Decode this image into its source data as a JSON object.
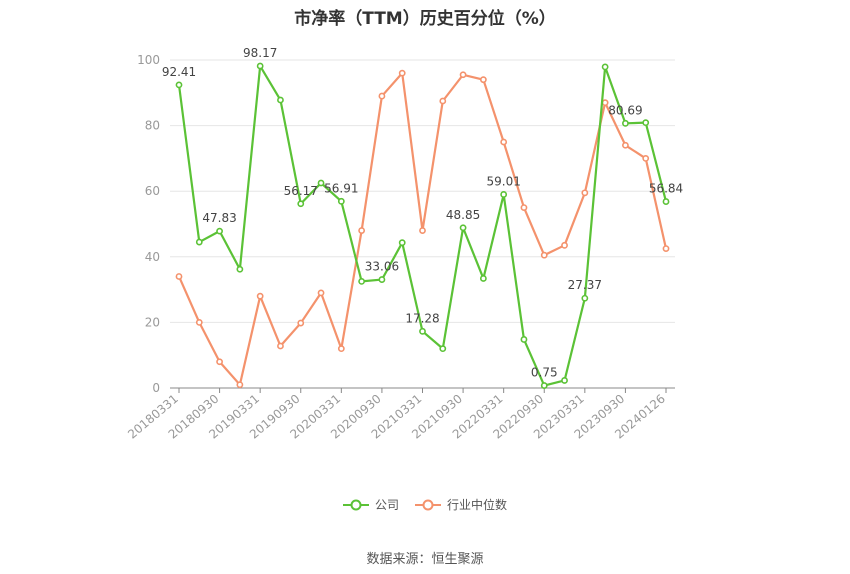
{
  "chart_data": {
    "type": "line",
    "title": "市净率（TTM）历史百分位（%）",
    "xlabel": "",
    "ylabel": "",
    "ylim": [
      0,
      100
    ],
    "yticks": [
      0,
      20,
      40,
      60,
      80,
      100
    ],
    "grid": true,
    "legend_position": "bottom",
    "x": [
      "20180331",
      "20180630",
      "20180930",
      "20181231",
      "20190331",
      "20190630",
      "20190930",
      "20191231",
      "20200331",
      "20200630",
      "20200930",
      "20201231",
      "20210331",
      "20210630",
      "20210930",
      "20211231",
      "20220331",
      "20220630",
      "20220930",
      "20221231",
      "20230331",
      "20230630",
      "20230930",
      "20231231",
      "20240126"
    ],
    "tick_labels": [
      "20180331",
      "20180930",
      "20190331",
      "20190930",
      "20200331",
      "20200930",
      "20210331",
      "20210930",
      "20220331",
      "20220930",
      "20230331",
      "20230930",
      "20240126"
    ],
    "tick_indices": [
      0,
      2,
      4,
      6,
      8,
      10,
      12,
      14,
      16,
      18,
      20,
      22,
      24
    ],
    "series": [
      {
        "name": "公司",
        "color": "#5bc236",
        "values": [
          92.41,
          44.5,
          47.83,
          36.2,
          98.17,
          87.8,
          56.17,
          62.5,
          56.91,
          32.5,
          33.06,
          44.3,
          17.28,
          12.0,
          48.85,
          33.4,
          59.01,
          14.8,
          0.75,
          2.3,
          27.37,
          97.9,
          80.69,
          80.9,
          56.84
        ],
        "labels": [
          "92.41",
          null,
          "47.83",
          null,
          "98.17",
          null,
          "56.17",
          null,
          "56.91",
          null,
          "33.06",
          null,
          "17.28",
          null,
          "48.85",
          null,
          "59.01",
          null,
          "0.75",
          null,
          "27.37",
          null,
          "80.69",
          null,
          "56.84"
        ]
      },
      {
        "name": "行业中位数",
        "color": "#f4926c",
        "values": [
          34.0,
          20.0,
          8.0,
          1.0,
          28.0,
          12.8,
          19.8,
          29.0,
          12.0,
          48.0,
          89.0,
          96.0,
          48.0,
          87.5,
          95.5,
          94.0,
          75.0,
          55.0,
          40.5,
          43.5,
          59.5,
          87.0,
          74.0,
          70.0,
          42.5
        ]
      }
    ]
  },
  "legend": {
    "company": "公司",
    "industry": "行业中位数"
  },
  "footer": {
    "source": "数据来源：恒生聚源"
  }
}
